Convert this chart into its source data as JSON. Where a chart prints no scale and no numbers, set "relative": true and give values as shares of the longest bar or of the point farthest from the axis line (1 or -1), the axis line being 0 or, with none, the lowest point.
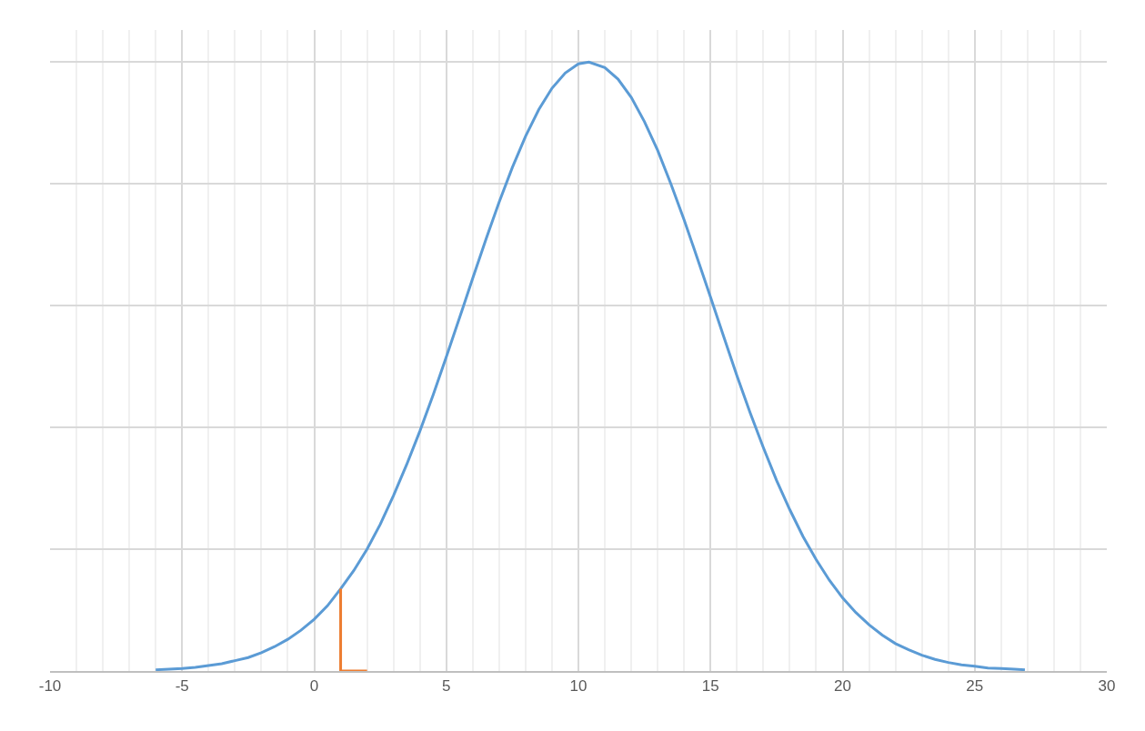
{
  "chart_data": {
    "type": "line",
    "relative": true,
    "grid": true,
    "marker": "none",
    "line_style": "solid",
    "xlim": [
      -10,
      30
    ],
    "xticks": [
      -10,
      {
        "value": -9,
        "label": null
      },
      {
        "value": -8,
        "label": null
      },
      {
        "value": -7,
        "label": null
      },
      {
        "value": -6,
        "label": null
      },
      -5,
      {
        "value": -4,
        "label": null
      },
      {
        "value": -3,
        "label": null
      },
      {
        "value": -2,
        "label": null
      },
      {
        "value": -1,
        "label": null
      },
      0,
      {
        "value": 1,
        "label": null
      },
      {
        "value": 2,
        "label": null
      },
      {
        "value": 3,
        "label": null
      },
      {
        "value": 4,
        "label": null
      },
      5,
      {
        "value": 6,
        "label": null
      },
      {
        "value": 7,
        "label": null
      },
      {
        "value": 8,
        "label": null
      },
      {
        "value": 9,
        "label": null
      },
      10,
      {
        "value": 11,
        "label": null
      },
      {
        "value": 12,
        "label": null
      },
      {
        "value": 13,
        "label": null
      },
      {
        "value": 14,
        "label": null
      },
      15,
      {
        "value": 16,
        "label": null
      },
      {
        "value": 17,
        "label": null
      },
      {
        "value": 18,
        "label": null
      },
      {
        "value": 19,
        "label": null
      },
      20,
      {
        "value": 21,
        "label": null
      },
      {
        "value": 22,
        "label": null
      },
      {
        "value": 23,
        "label": null
      },
      {
        "value": 24,
        "label": null
      },
      25,
      {
        "value": 26,
        "label": null
      },
      {
        "value": 27,
        "label": null
      },
      {
        "value": 28,
        "label": null
      },
      {
        "value": 29,
        "label": null
      },
      30
    ],
    "series": [
      {
        "color": "#5b9bd5",
        "x": [
          -6,
          -5.5,
          -5,
          -4.5,
          -4,
          -3.5,
          -3,
          -2.5,
          -2,
          -1.5,
          -1,
          -0.5,
          0,
          0.5,
          1,
          1.5,
          2,
          2.5,
          3,
          3.5,
          4,
          4.5,
          5,
          5.5,
          6,
          6.5,
          7,
          7.5,
          8,
          8.5,
          9,
          9.5,
          10,
          10.4,
          11,
          11.5,
          12,
          12.5,
          13,
          13.5,
          14,
          14.5,
          15,
          15.5,
          16,
          16.5,
          17,
          17.5,
          18,
          18.5,
          19,
          19.5,
          20,
          20.5,
          21,
          21.5,
          22,
          22.5,
          23,
          23.5,
          24,
          24.5,
          25,
          25.5,
          26,
          26.5,
          26.9
        ],
        "values": [
          0.002,
          0.003,
          0.004,
          0.006,
          0.009,
          0.012,
          0.017,
          0.022,
          0.03,
          0.04,
          0.052,
          0.067,
          0.085,
          0.107,
          0.135,
          0.165,
          0.2,
          0.241,
          0.288,
          0.339,
          0.394,
          0.453,
          0.516,
          0.58,
          0.645,
          0.709,
          0.77,
          0.827,
          0.878,
          0.922,
          0.957,
          0.982,
          0.997,
          1.0,
          0.991,
          0.972,
          0.942,
          0.902,
          0.855,
          0.8,
          0.741,
          0.678,
          0.614,
          0.549,
          0.485,
          0.424,
          0.367,
          0.313,
          0.265,
          0.221,
          0.183,
          0.149,
          0.12,
          0.096,
          0.076,
          0.059,
          0.045,
          0.035,
          0.026,
          0.019,
          0.014,
          0.01,
          0.008,
          0.005,
          0.004,
          0.003,
          0.002
        ]
      },
      {
        "color": "#ed7d31",
        "x": [
          1,
          1,
          2
        ],
        "values": [
          0.135,
          0.0,
          0.0
        ]
      }
    ]
  }
}
